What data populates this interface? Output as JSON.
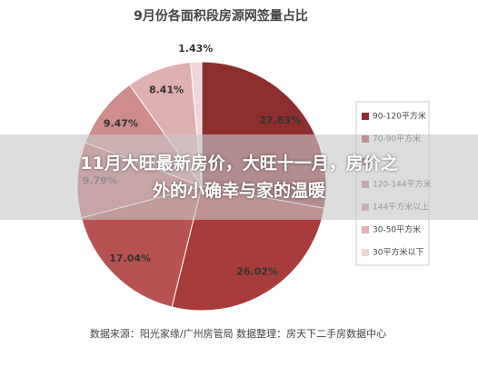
{
  "chart_data": {
    "type": "pie",
    "title": "9月份各面积段房源网签量占比",
    "categories": [
      "90-120平方米",
      "70-90平方米",
      null,
      "120-144平方米",
      "144平方米以上",
      "30-50平方米",
      "30平方米以下"
    ],
    "values": [
      27.83,
      26.02,
      17.04,
      9.79,
      9.47,
      8.41,
      1.43
    ],
    "value_labels": [
      "27.83%",
      "26.02%",
      "17.04%",
      "9.79%",
      "9.47%",
      "8.41%",
      "1.43%"
    ],
    "colors": [
      "#8e2f2f",
      "#a83b3b",
      "#b85252",
      "#c46c6c",
      "#d08b8b",
      "#dfb0b0",
      "#eed6d6"
    ],
    "source": "数据来源：阳光家缘/广州房管局 数据整理：房天下二手房数据中心",
    "legend": "right"
  },
  "overlay": {
    "lines": [
      "11月大旺最新房价，大旺十一月，房价之",
      "外的小确幸与家的温暖"
    ]
  }
}
